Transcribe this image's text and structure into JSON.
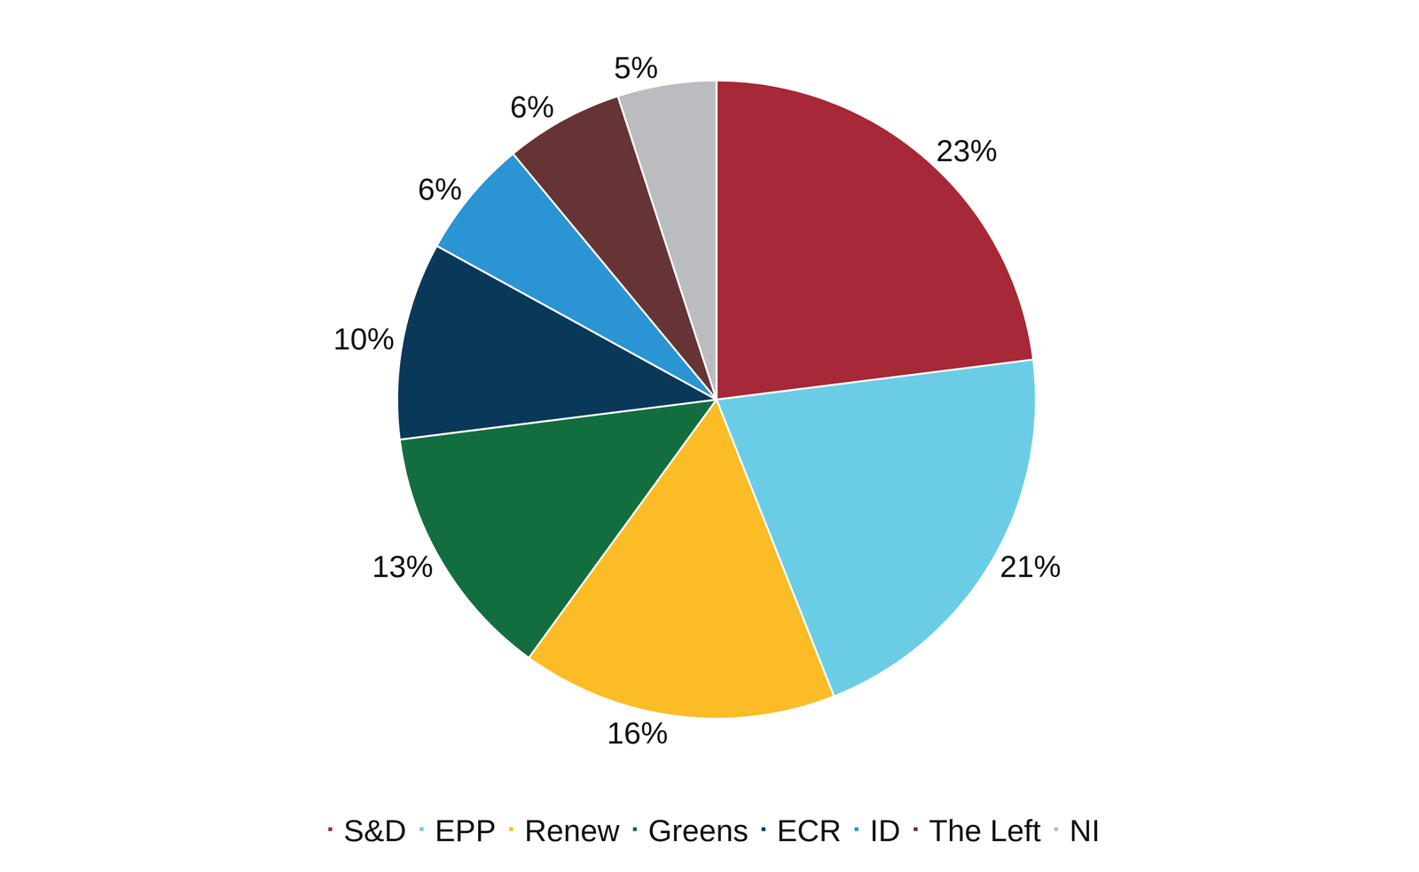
{
  "chart_data": {
    "type": "pie",
    "categories": [
      "S&D",
      "EPP",
      "Renew",
      "Greens",
      "ECR",
      "ID",
      "The Left",
      "NI"
    ],
    "values": [
      23,
      21,
      16,
      13,
      10,
      6,
      6,
      5
    ],
    "value_labels": [
      "23%",
      "21%",
      "16%",
      "13%",
      "10%",
      "6%",
      "6%",
      "5%"
    ],
    "colors": [
      "#a72836",
      "#6bcde5",
      "#fcbc26",
      "#136e3f",
      "#0a3859",
      "#2b95d3",
      "#663434",
      "#bbbcc0"
    ],
    "data_labels": true,
    "legend": "bottom"
  }
}
